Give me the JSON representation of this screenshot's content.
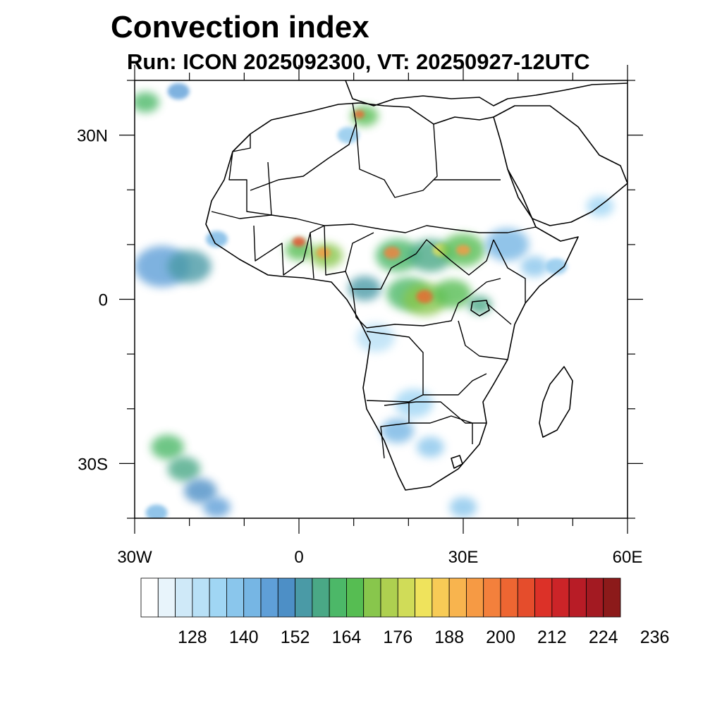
{
  "title": "Convection index",
  "subtitle": "Run: ICON 2025092300,  VT: 20250927-12UTC",
  "map": {
    "lon_range": [
      -30,
      60
    ],
    "lat_range": [
      -40,
      40
    ],
    "x_ticks": [
      {
        "lon": -30,
        "label": "30W"
      },
      {
        "lon": 0,
        "label": "0"
      },
      {
        "lon": 30,
        "label": "30E"
      },
      {
        "lon": 60,
        "label": "60E"
      }
    ],
    "y_ticks": [
      {
        "lat": 30,
        "label": "30N"
      },
      {
        "lat": 0,
        "label": "0"
      },
      {
        "lat": -30,
        "label": "30S"
      }
    ],
    "minor_lon_step": 10,
    "minor_lat_step": 10
  },
  "colorbar": {
    "colors": [
      "#ffffff",
      "#e8f4fb",
      "#cfe9f8",
      "#b8e0f6",
      "#a0d6f4",
      "#8ac6ec",
      "#76b6e4",
      "#5f9fd8",
      "#4d8fc6",
      "#4a9aa6",
      "#4aa886",
      "#4cb868",
      "#56bd52",
      "#88c64c",
      "#aed050",
      "#d0dc58",
      "#efe35c",
      "#f7cb56",
      "#f8b44e",
      "#f69a44",
      "#f3803c",
      "#ee6632",
      "#e54d2c",
      "#dc3128",
      "#cc2428",
      "#b81c26",
      "#a31a22",
      "#8c1a1a"
    ],
    "labels": [
      "128",
      "140",
      "152",
      "164",
      "176",
      "188",
      "200",
      "212",
      "224",
      "236"
    ]
  },
  "convection_cells": [
    {
      "lon": -25,
      "lat": 6,
      "r": 5,
      "level": 7
    },
    {
      "lon": -20,
      "lat": 6,
      "r": 4,
      "level": 9
    },
    {
      "lon": -15,
      "lat": 11,
      "r": 2,
      "level": 6
    },
    {
      "lon": 0,
      "lat": 9,
      "r": 2.5,
      "level": 12
    },
    {
      "lon": 0,
      "lat": 10.5,
      "r": 1.2,
      "level": 22
    },
    {
      "lon": 5,
      "lat": 8,
      "r": 3,
      "level": 13
    },
    {
      "lon": 4.5,
      "lat": 8.5,
      "r": 1.3,
      "level": 19
    },
    {
      "lon": 12,
      "lat": 2,
      "r": 3,
      "level": 9
    },
    {
      "lon": 18,
      "lat": 8,
      "r": 4,
      "level": 11
    },
    {
      "lon": 17,
      "lat": 8.5,
      "r": 1.5,
      "level": 20
    },
    {
      "lon": 24,
      "lat": 8,
      "r": 4,
      "level": 10
    },
    {
      "lon": 26,
      "lat": 9,
      "r": 1.6,
      "level": 16
    },
    {
      "lon": 30,
      "lat": 9,
      "r": 4,
      "level": 12
    },
    {
      "lon": 30,
      "lat": 9,
      "r": 1.3,
      "level": 19
    },
    {
      "lon": 20,
      "lat": 1,
      "r": 4,
      "level": 11
    },
    {
      "lon": 23,
      "lat": 0,
      "r": 4,
      "level": 13
    },
    {
      "lon": 23,
      "lat": 0.5,
      "r": 1.6,
      "level": 21
    },
    {
      "lon": 28,
      "lat": 1,
      "r": 3.5,
      "level": 12
    },
    {
      "lon": 33,
      "lat": -1,
      "r": 2.2,
      "level": 10
    },
    {
      "lon": 38,
      "lat": 10,
      "r": 4,
      "level": 6
    },
    {
      "lon": 43,
      "lat": 6,
      "r": 2.5,
      "level": 5
    },
    {
      "lon": 47,
      "lat": 6,
      "r": 2,
      "level": 5
    },
    {
      "lon": 14,
      "lat": -7,
      "r": 3.5,
      "level": 3
    },
    {
      "lon": 21,
      "lat": -19,
      "r": 3.5,
      "level": 4
    },
    {
      "lon": 18,
      "lat": -24,
      "r": 3,
      "level": 6
    },
    {
      "lon": 24,
      "lat": -27,
      "r": 2.5,
      "level": 5
    },
    {
      "lon": 12,
      "lat": 33.5,
      "r": 2.5,
      "level": 12
    },
    {
      "lon": 11,
      "lat": 33.8,
      "r": 1,
      "level": 21
    },
    {
      "lon": 9,
      "lat": 30,
      "r": 2,
      "level": 5
    },
    {
      "lon": -28,
      "lat": 36,
      "r": 2.5,
      "level": 11
    },
    {
      "lon": -22,
      "lat": 38,
      "r": 2,
      "level": 7
    },
    {
      "lon": -24,
      "lat": -27,
      "r": 3,
      "level": 11
    },
    {
      "lon": -21,
      "lat": -31,
      "r": 3,
      "level": 10
    },
    {
      "lon": -18,
      "lat": -35,
      "r": 3,
      "level": 8
    },
    {
      "lon": -15,
      "lat": -38,
      "r": 2.5,
      "level": 7
    },
    {
      "lon": -26,
      "lat": -39,
      "r": 2,
      "level": 6
    },
    {
      "lon": 30,
      "lat": -38,
      "r": 2.5,
      "level": 5
    },
    {
      "lon": 55,
      "lat": 17,
      "r": 2.5,
      "level": 4
    }
  ]
}
